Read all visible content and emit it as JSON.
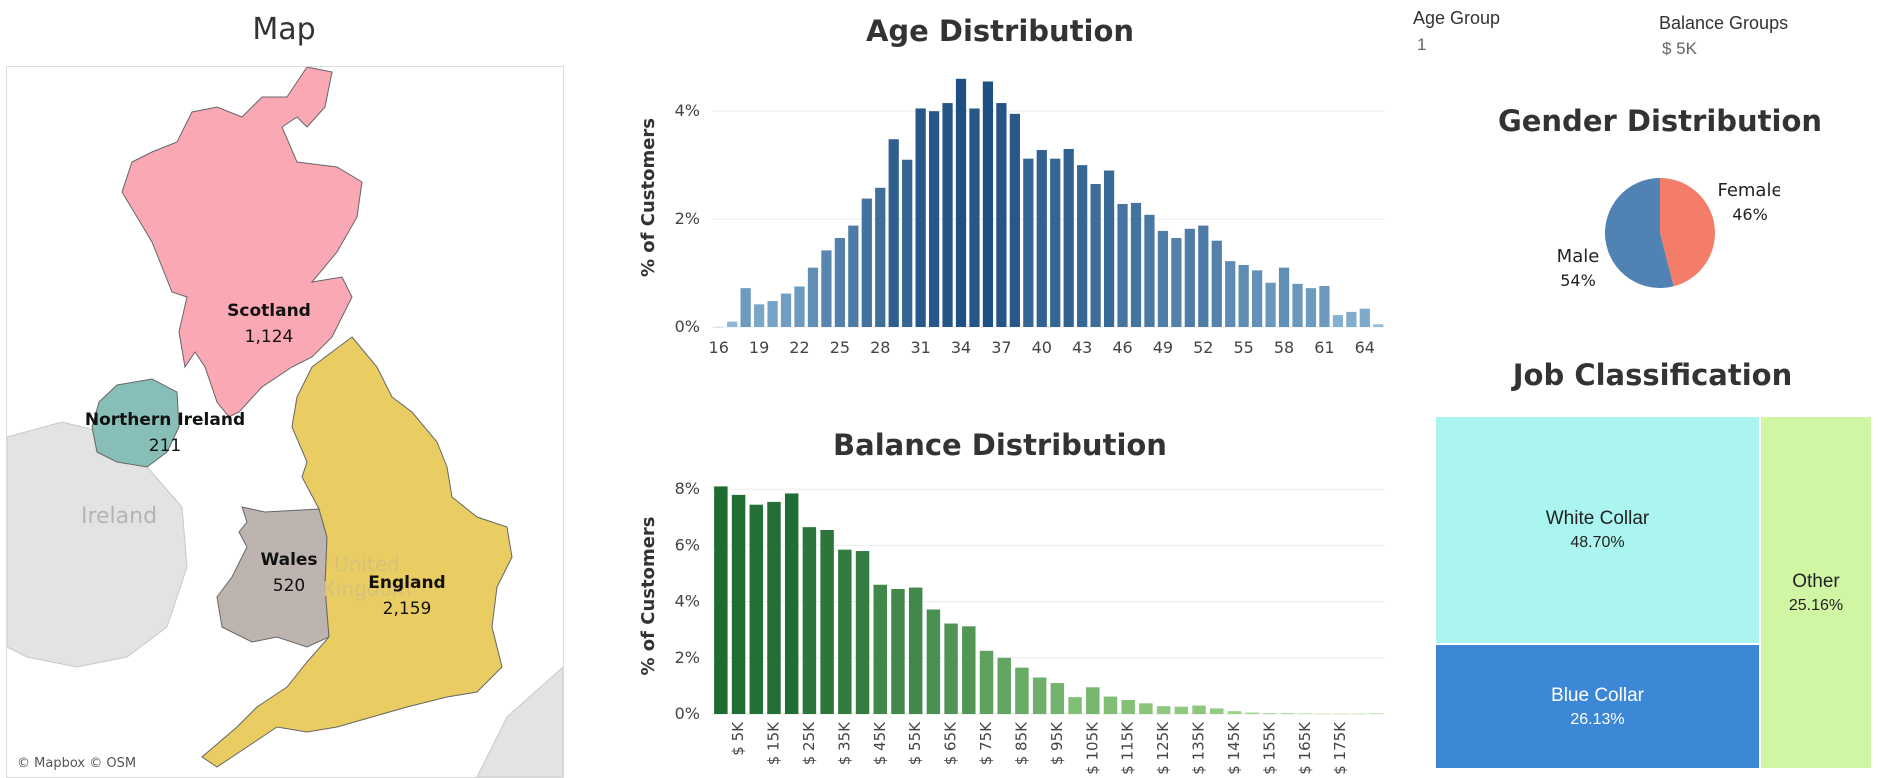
{
  "map": {
    "title": "Map",
    "attribution": "© Mapbox © OSM",
    "background_labels": {
      "ireland": "Ireland",
      "uk_line1": "United",
      "uk_line2": "Kingdom"
    },
    "regions": [
      {
        "name": "Scotland",
        "value": "1,124",
        "color": "#f9a8b4"
      },
      {
        "name": "Northern Ireland",
        "value": "211",
        "color": "#87bfb8"
      },
      {
        "name": "Wales",
        "value": "520",
        "color": "#bdb4b0"
      },
      {
        "name": "England",
        "value": "2,159",
        "color": "#eacd62"
      }
    ]
  },
  "filters": {
    "age_group": {
      "label": "Age Group",
      "value": "1"
    },
    "balance_groups": {
      "label": "Balance Groups",
      "value": "$ 5K"
    }
  },
  "chart_data": [
    {
      "id": "age",
      "type": "bar",
      "title": "Age Distribution",
      "ylabel": "% of Customers",
      "ylim": [
        0,
        4.8
      ],
      "yticks": [
        0,
        2,
        4
      ],
      "ytick_labels": [
        "0%",
        "2%",
        "4%"
      ],
      "x": [
        16,
        17,
        18,
        19,
        20,
        21,
        22,
        23,
        24,
        25,
        26,
        27,
        28,
        29,
        30,
        31,
        32,
        33,
        34,
        35,
        36,
        37,
        38,
        39,
        40,
        41,
        42,
        43,
        44,
        45,
        46,
        47,
        48,
        49,
        50,
        51,
        52,
        53,
        54,
        55,
        56,
        57,
        58,
        59,
        60,
        61,
        62,
        63,
        64,
        65
      ],
      "values": [
        0.0,
        0.1,
        0.72,
        0.42,
        0.48,
        0.62,
        0.75,
        1.1,
        1.42,
        1.65,
        1.88,
        2.38,
        2.58,
        3.48,
        3.1,
        4.05,
        4.0,
        4.15,
        4.6,
        4.05,
        4.55,
        4.15,
        3.95,
        3.12,
        3.28,
        3.12,
        3.3,
        3.0,
        2.65,
        2.9,
        2.28,
        2.3,
        2.08,
        1.78,
        1.65,
        1.82,
        1.88,
        1.6,
        1.22,
        1.15,
        1.05,
        0.82,
        1.1,
        0.8,
        0.72,
        0.76,
        0.22,
        0.28,
        0.34,
        0.05
      ],
      "xtick_labels": [
        "16",
        "19",
        "22",
        "25",
        "28",
        "31",
        "34",
        "37",
        "40",
        "43",
        "46",
        "49",
        "52",
        "55",
        "58",
        "61",
        "64"
      ],
      "grid": true
    },
    {
      "id": "balance",
      "type": "bar",
      "title": "Balance Distribution",
      "ylabel": "% of Customers",
      "ylim": [
        0,
        8.4
      ],
      "yticks": [
        0,
        2,
        4,
        6,
        8
      ],
      "ytick_labels": [
        "0%",
        "2%",
        "4%",
        "6%",
        "8%"
      ],
      "values": [
        8.1,
        7.8,
        7.45,
        7.55,
        7.85,
        6.65,
        6.55,
        5.85,
        5.8,
        4.6,
        4.45,
        4.5,
        3.72,
        3.22,
        3.12,
        2.25,
        2.0,
        1.65,
        1.3,
        1.1,
        0.6,
        0.95,
        0.62,
        0.5,
        0.38,
        0.28,
        0.26,
        0.3,
        0.2,
        0.1,
        0.05,
        0.03,
        0.03,
        0.02,
        0.01,
        0.01,
        0.01,
        0.02
      ],
      "xtick_labels": [
        "$ 5K",
        "$ 15K",
        "$ 25K",
        "$ 35K",
        "$ 45K",
        "$ 55K",
        "$ 65K",
        "$ 75K",
        "$ 85K",
        "$ 95K",
        "$ 105K",
        "$ 115K",
        "$ 125K",
        "$ 135K",
        "$ 145K",
        "$ 155K",
        "$ 165K",
        "$ 175K"
      ],
      "grid": true
    },
    {
      "id": "gender",
      "type": "pie",
      "title": "Gender Distribution",
      "slices": [
        {
          "name": "Female",
          "value": 46,
          "label": "46%",
          "color": "#f47d6a"
        },
        {
          "name": "Male",
          "value": 54,
          "label": "54%",
          "color": "#5082b4"
        }
      ]
    },
    {
      "id": "job",
      "type": "treemap",
      "title": "Job Classification",
      "items": [
        {
          "name": "White Collar",
          "value": 48.7,
          "label": "48.70%",
          "color": "#aaf5ef"
        },
        {
          "name": "Blue Collar",
          "value": 26.13,
          "label": "26.13%",
          "color": "#3c88d6"
        },
        {
          "name": "Other",
          "value": 25.16,
          "label": "25.16%",
          "color": "#d0f6a4"
        }
      ]
    }
  ]
}
